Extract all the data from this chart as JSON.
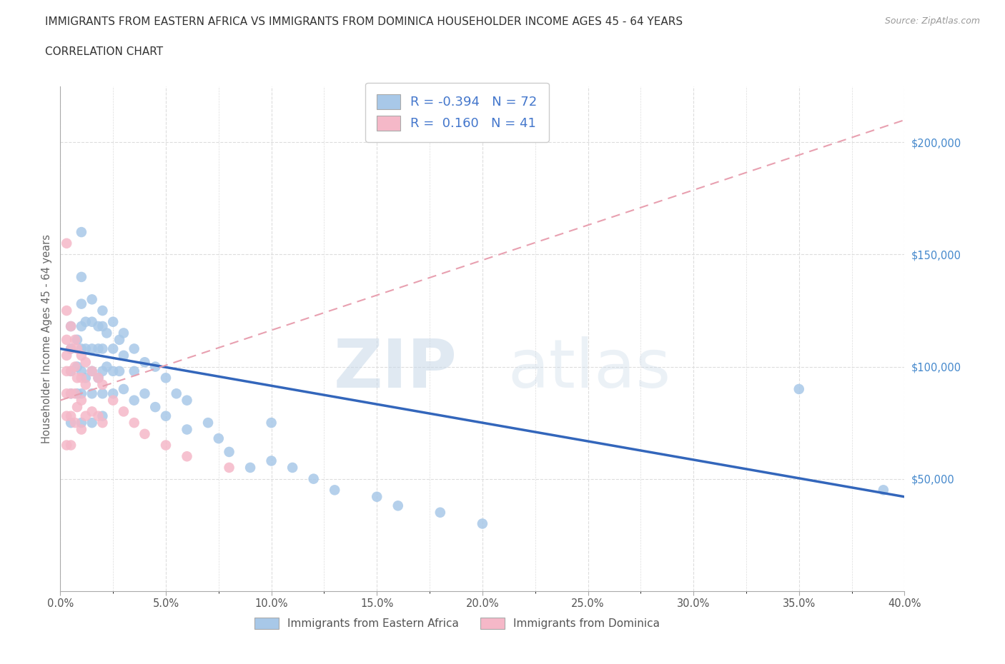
{
  "title_line1": "IMMIGRANTS FROM EASTERN AFRICA VS IMMIGRANTS FROM DOMINICA HOUSEHOLDER INCOME AGES 45 - 64 YEARS",
  "title_line2": "CORRELATION CHART",
  "source_text": "Source: ZipAtlas.com",
  "ylabel": "Householder Income Ages 45 - 64 years",
  "xlim": [
    0.0,
    0.4
  ],
  "ylim": [
    0,
    225000
  ],
  "xtick_labels": [
    "0.0%",
    "",
    "5.0%",
    "",
    "10.0%",
    "",
    "15.0%",
    "",
    "20.0%",
    "",
    "25.0%",
    "",
    "30.0%",
    "",
    "35.0%",
    "",
    "40.0%"
  ],
  "xtick_vals": [
    0.0,
    0.025,
    0.05,
    0.075,
    0.1,
    0.125,
    0.15,
    0.175,
    0.2,
    0.225,
    0.25,
    0.275,
    0.3,
    0.325,
    0.35,
    0.375,
    0.4
  ],
  "ytick_vals": [
    50000,
    100000,
    150000,
    200000
  ],
  "ytick_labels": [
    "$50,000",
    "$100,000",
    "$150,000",
    "$200,000"
  ],
  "background_color": "#ffffff",
  "grid_color": "#dddddd",
  "eastern_africa_color": "#a8c8e8",
  "dominica_color": "#f5b8c8",
  "eastern_africa_line_color": "#3366bb",
  "dominica_line_color": "#e8a0b0",
  "legend_R_eastern": "-0.394",
  "legend_N_eastern": "72",
  "legend_R_dominica": "0.160",
  "legend_N_dominica": "41",
  "legend_text_color": "#4477cc",
  "watermark_zip": "ZIP",
  "watermark_atlas": "atlas",
  "ea_line_x0": 0.0,
  "ea_line_y0": 108000,
  "ea_line_x1": 0.4,
  "ea_line_y1": 42000,
  "dom_line_x0": 0.0,
  "dom_line_y0": 85000,
  "dom_line_x1": 0.4,
  "dom_line_y1": 210000,
  "eastern_africa_x": [
    0.005,
    0.005,
    0.005,
    0.005,
    0.005,
    0.008,
    0.008,
    0.008,
    0.01,
    0.01,
    0.01,
    0.01,
    0.01,
    0.01,
    0.01,
    0.01,
    0.012,
    0.012,
    0.012,
    0.015,
    0.015,
    0.015,
    0.015,
    0.015,
    0.015,
    0.018,
    0.018,
    0.018,
    0.02,
    0.02,
    0.02,
    0.02,
    0.02,
    0.02,
    0.022,
    0.022,
    0.025,
    0.025,
    0.025,
    0.025,
    0.028,
    0.028,
    0.03,
    0.03,
    0.03,
    0.035,
    0.035,
    0.035,
    0.04,
    0.04,
    0.045,
    0.045,
    0.05,
    0.05,
    0.055,
    0.06,
    0.06,
    0.07,
    0.075,
    0.08,
    0.09,
    0.1,
    0.1,
    0.11,
    0.12,
    0.13,
    0.15,
    0.16,
    0.18,
    0.2,
    0.35,
    0.39
  ],
  "eastern_africa_y": [
    118000,
    108000,
    98000,
    88000,
    75000,
    112000,
    100000,
    88000,
    160000,
    140000,
    128000,
    118000,
    108000,
    98000,
    88000,
    75000,
    120000,
    108000,
    95000,
    130000,
    120000,
    108000,
    98000,
    88000,
    75000,
    118000,
    108000,
    95000,
    125000,
    118000,
    108000,
    98000,
    88000,
    78000,
    115000,
    100000,
    120000,
    108000,
    98000,
    88000,
    112000,
    98000,
    115000,
    105000,
    90000,
    108000,
    98000,
    85000,
    102000,
    88000,
    100000,
    82000,
    95000,
    78000,
    88000,
    85000,
    72000,
    75000,
    68000,
    62000,
    55000,
    75000,
    58000,
    55000,
    50000,
    45000,
    42000,
    38000,
    35000,
    30000,
    90000,
    45000
  ],
  "dominica_x": [
    0.003,
    0.003,
    0.003,
    0.003,
    0.003,
    0.003,
    0.003,
    0.003,
    0.005,
    0.005,
    0.005,
    0.005,
    0.005,
    0.005,
    0.007,
    0.007,
    0.007,
    0.007,
    0.008,
    0.008,
    0.008,
    0.01,
    0.01,
    0.01,
    0.01,
    0.012,
    0.012,
    0.012,
    0.015,
    0.015,
    0.018,
    0.018,
    0.02,
    0.02,
    0.025,
    0.03,
    0.035,
    0.04,
    0.05,
    0.06,
    0.08
  ],
  "dominica_y": [
    155000,
    125000,
    112000,
    105000,
    98000,
    88000,
    78000,
    65000,
    118000,
    108000,
    98000,
    88000,
    78000,
    65000,
    112000,
    100000,
    88000,
    75000,
    108000,
    95000,
    82000,
    105000,
    95000,
    85000,
    72000,
    102000,
    92000,
    78000,
    98000,
    80000,
    95000,
    78000,
    92000,
    75000,
    85000,
    80000,
    75000,
    70000,
    65000,
    60000,
    55000
  ]
}
